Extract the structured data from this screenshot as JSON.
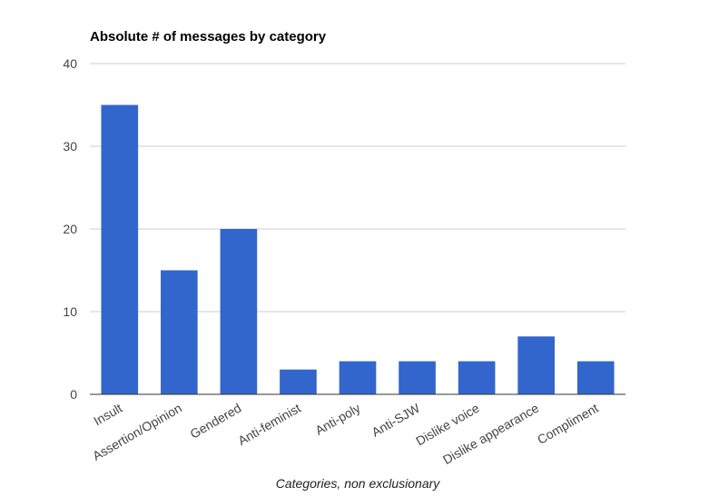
{
  "chart_data": {
    "type": "bar",
    "title": "Absolute # of messages by category",
    "x_label": "Categories, non exclusionary",
    "categories": [
      "Insult",
      "Assertion/Opinion",
      "Gendered",
      "Anti-feminist",
      "Anti-poly",
      "Anti-SJW",
      "Dislike voice",
      "Dislike appearance",
      "Compliment"
    ],
    "values": [
      35,
      15,
      20,
      3,
      4,
      4,
      4,
      7,
      4
    ],
    "color": "#3366cc",
    "ylim": [
      0,
      40
    ],
    "yticks": [
      0,
      10,
      20,
      30,
      40
    ],
    "grid": true
  }
}
